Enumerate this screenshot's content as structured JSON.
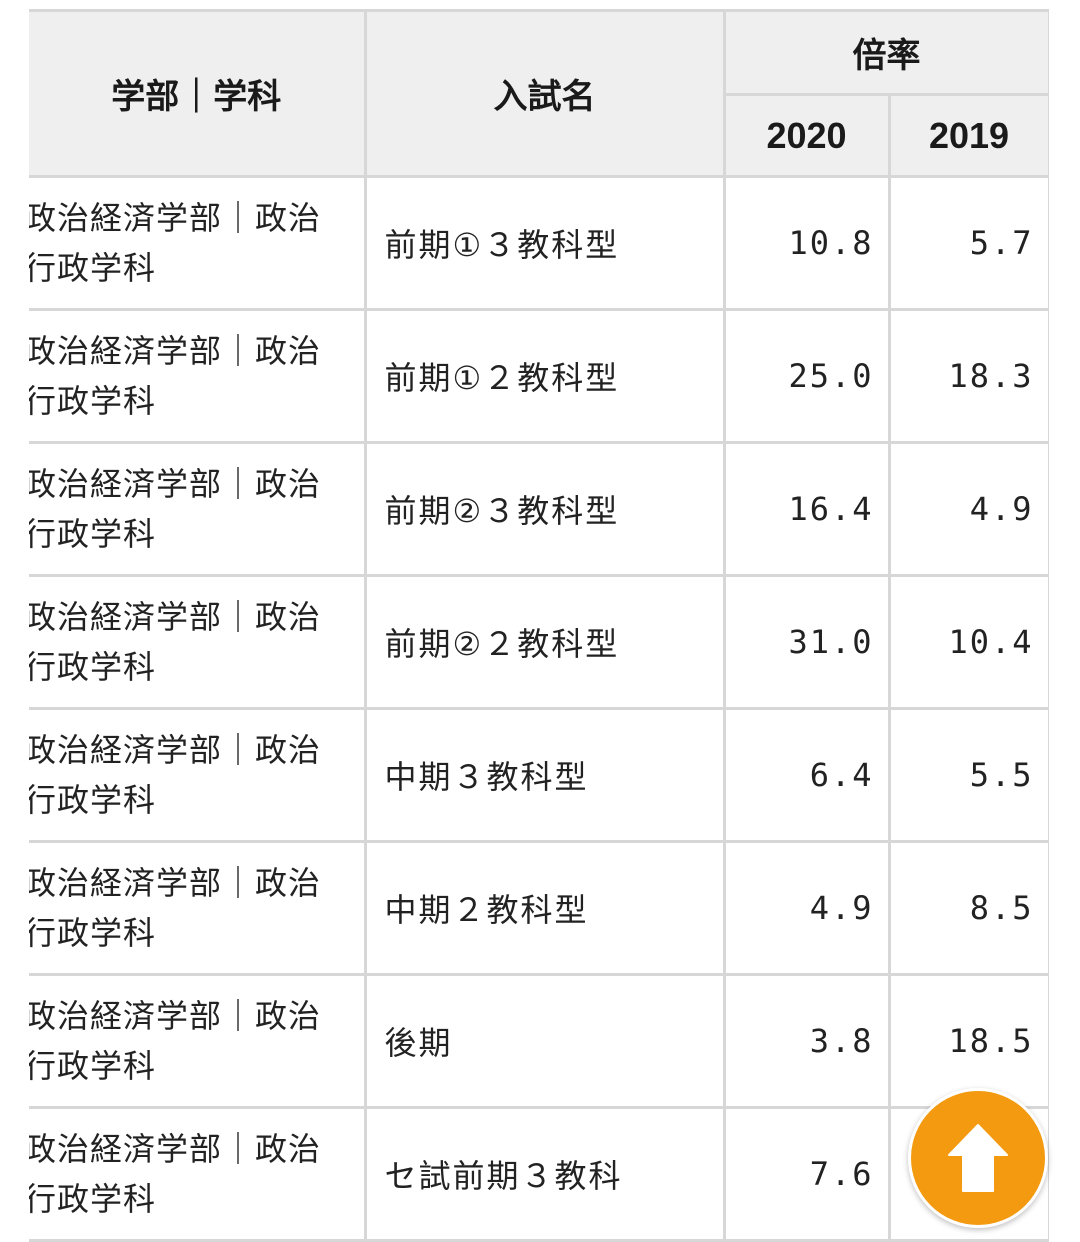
{
  "table": {
    "headers": {
      "department": "学部｜学科",
      "exam_name": "入試名",
      "ratio": "倍率",
      "year_a": "2020",
      "year_b": "2019"
    },
    "rows": [
      {
        "department": "政治経済学部｜政治行政学科",
        "exam": "前期①３教科型",
        "y2020": "10.8",
        "y2019": "5.7"
      },
      {
        "department": "政治経済学部｜政治行政学科",
        "exam": "前期①２教科型",
        "y2020": "25.0",
        "y2019": "18.3"
      },
      {
        "department": "政治経済学部｜政治行政学科",
        "exam": "前期②３教科型",
        "y2020": "16.4",
        "y2019": "4.9"
      },
      {
        "department": "政治経済学部｜政治行政学科",
        "exam": "前期②２教科型",
        "y2020": "31.0",
        "y2019": "10.4"
      },
      {
        "department": "政治経済学部｜政治行政学科",
        "exam": "中期３教科型",
        "y2020": "6.4",
        "y2019": "5.5"
      },
      {
        "department": "政治経済学部｜政治行政学科",
        "exam": "中期２教科型",
        "y2020": "4.9",
        "y2019": "8.5"
      },
      {
        "department": "政治経済学部｜政治行政学科",
        "exam": "後期",
        "y2020": "3.8",
        "y2019": "18.5"
      },
      {
        "department": "政治経済学部｜政治行政学科",
        "exam": "セ試前期３教科",
        "y2020": "7.6",
        "y2019": ""
      }
    ]
  },
  "scroll_top_button": {
    "icon": "arrow-up-icon",
    "color": "#f39a10"
  },
  "colors": {
    "header_bg": "#efefef",
    "border": "#d7d7d7"
  }
}
